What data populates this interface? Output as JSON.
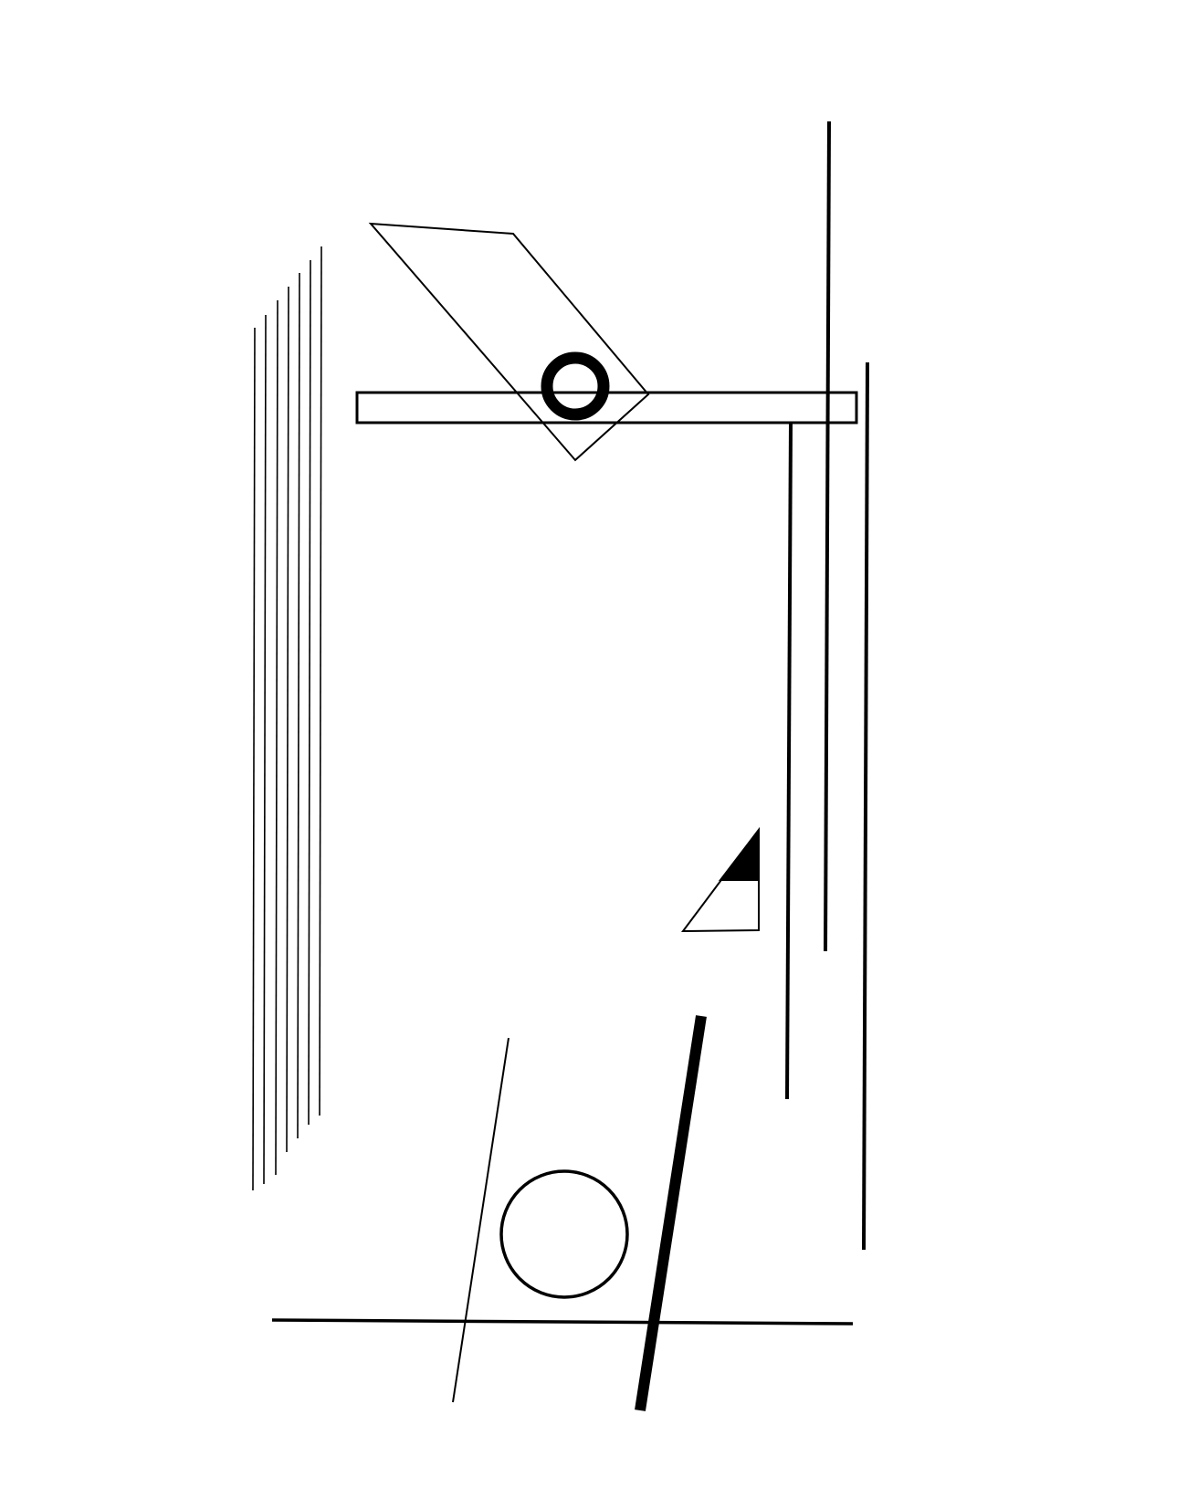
{
  "artwork": {
    "background_color": "#ffffff",
    "ink_color": "#000000",
    "elements": [
      "vertical-line-group",
      "tall-vertical-line",
      "right-vertical-line",
      "inner-vertical-line",
      "horizontal-bar",
      "parallelogram",
      "ring",
      "small-triangle",
      "bottom-horizontal-line",
      "thin-diagonal-line",
      "thick-diagonal-line",
      "outlined-circle"
    ]
  }
}
